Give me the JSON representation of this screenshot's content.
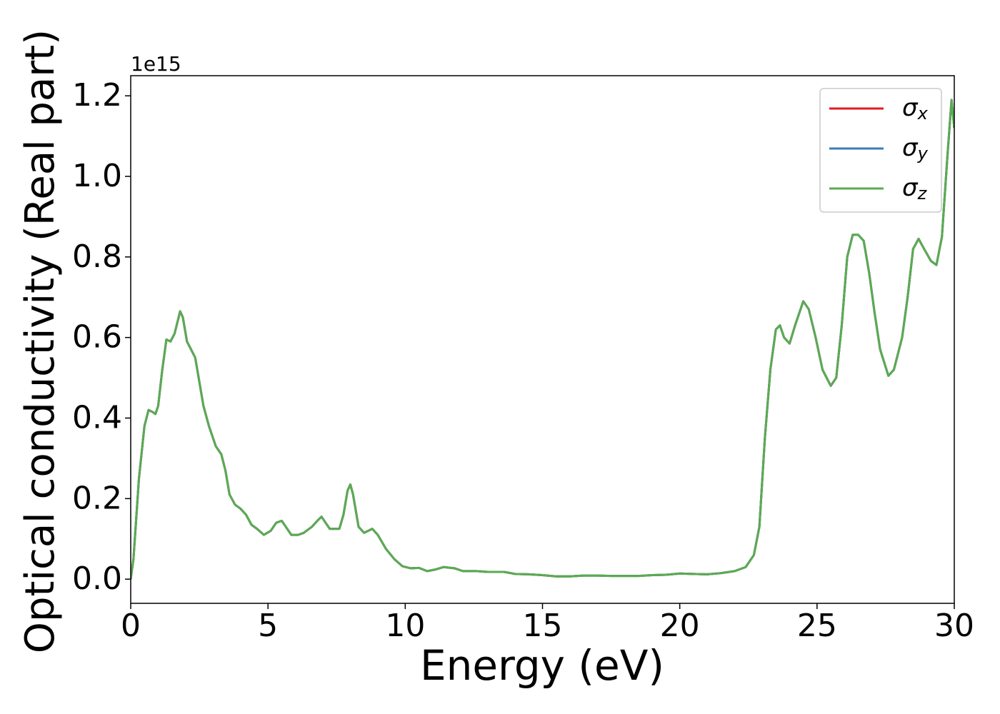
{
  "chart_data": {
    "type": "line",
    "xlabel": "Energy (eV)",
    "ylabel": "Optical conductivity (Real part)",
    "y_offset_label": "1e15",
    "xlim": [
      0,
      30
    ],
    "ylim": [
      -0.06,
      1.25
    ],
    "xticks": [
      0,
      5,
      10,
      15,
      20,
      25,
      30
    ],
    "yticks": [
      {
        "value": 0,
        "label": "0.0"
      },
      {
        "value": 0.2,
        "label": "0.2"
      },
      {
        "value": 0.4,
        "label": "0.4"
      },
      {
        "value": 0.6,
        "label": "0.6"
      },
      {
        "value": 0.8,
        "label": "0.8"
      },
      {
        "value": 1.0,
        "label": "1.0"
      },
      {
        "value": 1.2,
        "label": "1.2"
      }
    ],
    "legend": "upper right",
    "x": [
      0,
      0.1,
      0.3,
      0.5,
      0.65,
      0.8,
      0.9,
      1.0,
      1.15,
      1.3,
      1.45,
      1.6,
      1.8,
      1.9,
      2.05,
      2.2,
      2.35,
      2.5,
      2.65,
      2.85,
      3.1,
      3.3,
      3.45,
      3.6,
      3.8,
      4.0,
      4.2,
      4.4,
      4.6,
      4.85,
      5.1,
      5.3,
      5.5,
      5.65,
      5.85,
      6.1,
      6.3,
      6.6,
      6.8,
      6.95,
      7.1,
      7.25,
      7.6,
      7.75,
      7.9,
      8.0,
      8.1,
      8.3,
      8.5,
      8.8,
      9.0,
      9.3,
      9.6,
      9.9,
      10.2,
      10.5,
      10.8,
      11.1,
      11.4,
      11.8,
      12.1,
      12.6,
      13.0,
      13.6,
      14.0,
      14.5,
      15.0,
      15.5,
      16.0,
      16.5,
      17.0,
      17.5,
      18.0,
      18.5,
      19.0,
      19.5,
      20.0,
      20.5,
      21.0,
      21.5,
      22.0,
      22.4,
      22.7,
      22.9,
      23.1,
      23.3,
      23.5,
      23.65,
      23.8,
      24.0,
      24.2,
      24.5,
      24.7,
      24.95,
      25.2,
      25.5,
      25.7,
      25.9,
      26.1,
      26.3,
      26.5,
      26.7,
      26.9,
      27.1,
      27.3,
      27.6,
      27.8,
      28.1,
      28.3,
      28.5,
      28.7,
      28.9,
      29.15,
      29.35,
      29.55,
      29.75,
      29.9,
      30.0
    ],
    "series": [
      {
        "name": "σx",
        "color": "#e41a1c",
        "values": [
          0,
          0.05,
          0.25,
          0.38,
          0.42,
          0.415,
          0.41,
          0.43,
          0.52,
          0.595,
          0.59,
          0.61,
          0.665,
          0.65,
          0.59,
          0.57,
          0.55,
          0.49,
          0.43,
          0.38,
          0.33,
          0.31,
          0.27,
          0.21,
          0.185,
          0.175,
          0.16,
          0.135,
          0.125,
          0.11,
          0.12,
          0.14,
          0.145,
          0.13,
          0.11,
          0.11,
          0.115,
          0.13,
          0.145,
          0.155,
          0.14,
          0.125,
          0.125,
          0.16,
          0.22,
          0.235,
          0.21,
          0.13,
          0.115,
          0.125,
          0.11,
          0.075,
          0.05,
          0.032,
          0.027,
          0.028,
          0.02,
          0.024,
          0.03,
          0.027,
          0.02,
          0.02,
          0.018,
          0.018,
          0.013,
          0.012,
          0.01,
          0.007,
          0.007,
          0.009,
          0.009,
          0.008,
          0.008,
          0.008,
          0.01,
          0.011,
          0.014,
          0.013,
          0.012,
          0.015,
          0.02,
          0.03,
          0.06,
          0.13,
          0.35,
          0.52,
          0.62,
          0.63,
          0.6,
          0.585,
          0.63,
          0.69,
          0.67,
          0.6,
          0.52,
          0.48,
          0.5,
          0.63,
          0.8,
          0.855,
          0.855,
          0.84,
          0.76,
          0.66,
          0.57,
          0.505,
          0.52,
          0.6,
          0.7,
          0.82,
          0.845,
          0.82,
          0.79,
          0.78,
          0.85,
          1.05,
          1.19,
          1.12
        ]
      },
      {
        "name": "σy",
        "color": "#377eb8",
        "values": [
          0,
          0.05,
          0.25,
          0.38,
          0.42,
          0.415,
          0.41,
          0.43,
          0.52,
          0.595,
          0.59,
          0.61,
          0.665,
          0.65,
          0.59,
          0.57,
          0.55,
          0.49,
          0.43,
          0.38,
          0.33,
          0.31,
          0.27,
          0.21,
          0.185,
          0.175,
          0.16,
          0.135,
          0.125,
          0.11,
          0.12,
          0.14,
          0.145,
          0.13,
          0.11,
          0.11,
          0.115,
          0.13,
          0.145,
          0.155,
          0.14,
          0.125,
          0.125,
          0.16,
          0.22,
          0.235,
          0.21,
          0.13,
          0.115,
          0.125,
          0.11,
          0.075,
          0.05,
          0.032,
          0.027,
          0.028,
          0.02,
          0.024,
          0.03,
          0.027,
          0.02,
          0.02,
          0.018,
          0.018,
          0.013,
          0.012,
          0.01,
          0.007,
          0.007,
          0.009,
          0.009,
          0.008,
          0.008,
          0.008,
          0.01,
          0.011,
          0.014,
          0.013,
          0.012,
          0.015,
          0.02,
          0.03,
          0.06,
          0.13,
          0.35,
          0.52,
          0.62,
          0.63,
          0.6,
          0.585,
          0.63,
          0.69,
          0.67,
          0.6,
          0.52,
          0.48,
          0.5,
          0.63,
          0.8,
          0.855,
          0.855,
          0.84,
          0.76,
          0.66,
          0.57,
          0.505,
          0.52,
          0.6,
          0.7,
          0.82,
          0.845,
          0.82,
          0.79,
          0.78,
          0.85,
          1.05,
          1.19,
          1.12
        ]
      },
      {
        "name": "σz",
        "color": "#5aab52",
        "values": [
          0,
          0.05,
          0.25,
          0.38,
          0.42,
          0.415,
          0.41,
          0.43,
          0.52,
          0.595,
          0.59,
          0.61,
          0.665,
          0.65,
          0.59,
          0.57,
          0.55,
          0.49,
          0.43,
          0.38,
          0.33,
          0.31,
          0.27,
          0.21,
          0.185,
          0.175,
          0.16,
          0.135,
          0.125,
          0.11,
          0.12,
          0.14,
          0.145,
          0.13,
          0.11,
          0.11,
          0.115,
          0.13,
          0.145,
          0.155,
          0.14,
          0.125,
          0.125,
          0.16,
          0.22,
          0.235,
          0.21,
          0.13,
          0.115,
          0.125,
          0.11,
          0.075,
          0.05,
          0.032,
          0.027,
          0.028,
          0.02,
          0.024,
          0.03,
          0.027,
          0.02,
          0.02,
          0.018,
          0.018,
          0.013,
          0.012,
          0.01,
          0.007,
          0.007,
          0.009,
          0.009,
          0.008,
          0.008,
          0.008,
          0.01,
          0.011,
          0.014,
          0.013,
          0.012,
          0.015,
          0.02,
          0.03,
          0.06,
          0.13,
          0.35,
          0.52,
          0.62,
          0.63,
          0.6,
          0.585,
          0.63,
          0.69,
          0.67,
          0.6,
          0.52,
          0.48,
          0.5,
          0.63,
          0.8,
          0.855,
          0.855,
          0.84,
          0.76,
          0.66,
          0.57,
          0.505,
          0.52,
          0.6,
          0.7,
          0.82,
          0.845,
          0.82,
          0.79,
          0.78,
          0.85,
          1.05,
          1.19,
          1.12
        ]
      }
    ]
  }
}
